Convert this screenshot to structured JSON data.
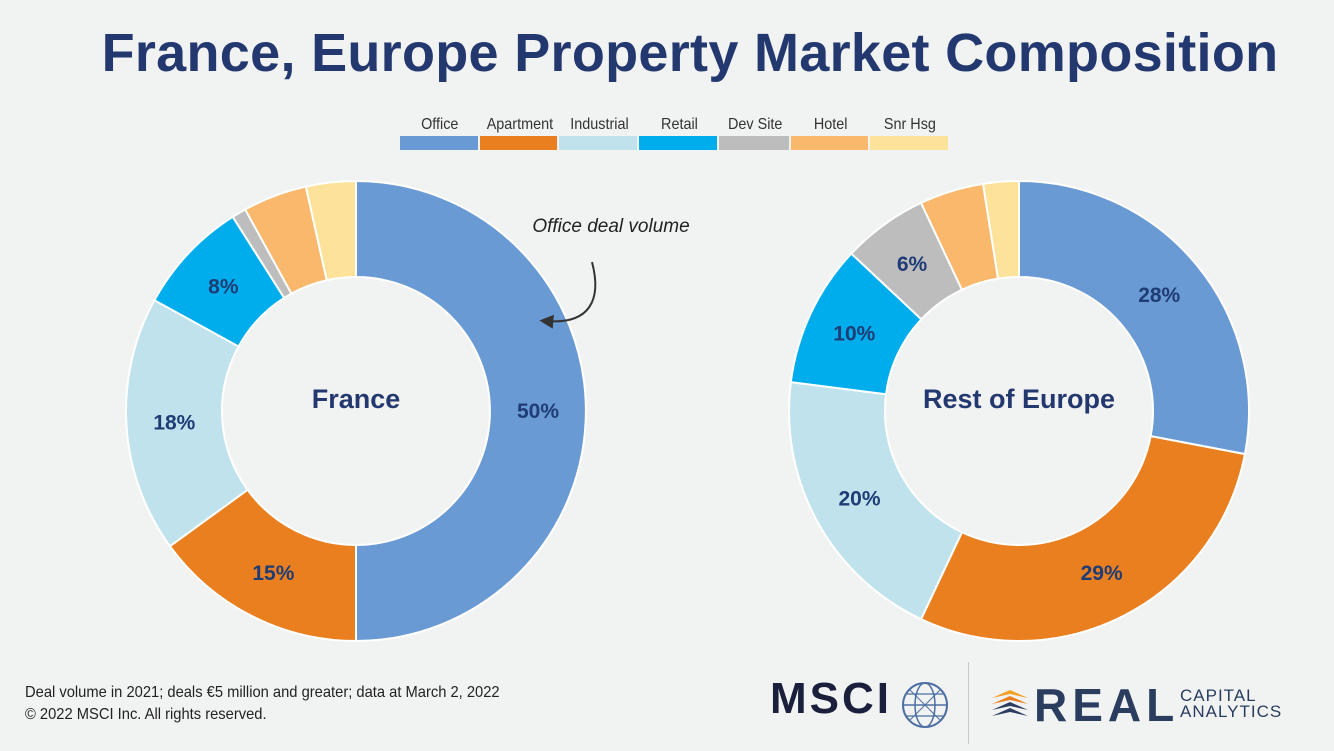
{
  "title": "France, Europe Property Market Composition",
  "legend": [
    {
      "label": "Office",
      "color": "#6a9ad4"
    },
    {
      "label": "Apartment",
      "color": "#e97f1f"
    },
    {
      "label": "Industrial",
      "color": "#bfe2ed"
    },
    {
      "label": "Retail",
      "color": "#00adec"
    },
    {
      "label": "Dev Site",
      "color": "#bdbdbd"
    },
    {
      "label": "Hotel",
      "color": "#f9b86b"
    },
    {
      "label": "Snr Hsg",
      "color": "#fde39a"
    }
  ],
  "annotation": "Office deal volume",
  "chart_data": [
    {
      "type": "pie",
      "center_label": "France",
      "categories": [
        "Office",
        "Apartment",
        "Industrial",
        "Retail",
        "Dev Site",
        "Hotel",
        "Snr Hsg"
      ],
      "values": [
        50,
        15,
        18,
        8,
        1,
        4.5,
        3.5
      ],
      "data_labels": [
        "50%",
        "15%",
        "18%",
        "8%",
        "",
        "",
        ""
      ]
    },
    {
      "type": "pie",
      "center_label": "Rest of Europe",
      "categories": [
        "Office",
        "Apartment",
        "Industrial",
        "Retail",
        "Dev Site",
        "Hotel",
        "Snr Hsg"
      ],
      "values": [
        28,
        29,
        20,
        10,
        6,
        4.5,
        2.5
      ],
      "data_labels": [
        "28%",
        "29%",
        "20%",
        "10%",
        "6%",
        "",
        ""
      ]
    }
  ],
  "footnote": {
    "line1": "Deal volume in 2021; deals €5 million and greater; data at March 2, 2022",
    "line2": "© 2022 MSCI Inc. All rights reserved."
  },
  "logos": {
    "msci": "MSCI",
    "real": "REAL",
    "capital": "CAPITAL",
    "analytics": "ANALYTICS"
  }
}
